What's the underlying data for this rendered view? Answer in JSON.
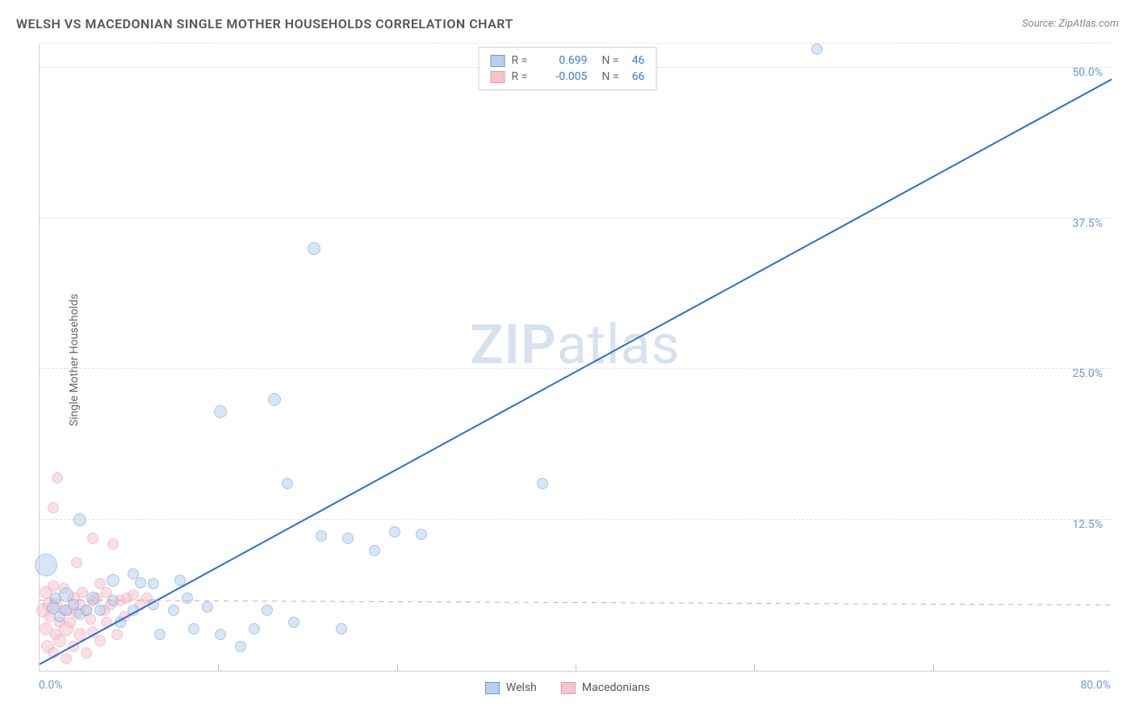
{
  "title": "WELSH VS MACEDONIAN SINGLE MOTHER HOUSEHOLDS CORRELATION CHART",
  "source": "Source: ZipAtlas.com",
  "y_axis_label": "Single Mother Households",
  "watermark_bold": "ZIP",
  "watermark_light": "atlas",
  "chart": {
    "type": "scatter",
    "background_color": "#ffffff",
    "grid_color": "#e0e0e0",
    "axis_color": "#d0d0d0",
    "tick_label_color": "#6b9bd1",
    "xlim": [
      0,
      80
    ],
    "ylim": [
      0,
      52
    ],
    "x_ticks": [
      0,
      80
    ],
    "x_tick_labels": [
      "0.0%",
      "80.0%"
    ],
    "x_minor_ticks": [
      13.3,
      26.7,
      40,
      53.3,
      66.7
    ],
    "y_gridlines": [
      12.5,
      25.0,
      37.5,
      50.0,
      52.0
    ],
    "y_tick_labels": [
      "12.5%",
      "25.0%",
      "37.5%",
      "50.0%"
    ],
    "title_fontsize": 16,
    "label_fontsize": 14
  },
  "series": [
    {
      "name": "Welsh",
      "color_fill": "#b8d0ec",
      "color_stroke": "#6b9bd1",
      "fill_opacity": 0.55,
      "trend": {
        "color": "#2b6cd4",
        "width": 2,
        "dashed": false,
        "x0": 0,
        "y0": 0.5,
        "x1": 80,
        "y1": 49.0
      },
      "stats": {
        "R": "0.699",
        "N": "46"
      },
      "points": [
        {
          "x": 0.5,
          "y": 8.8,
          "r": 14
        },
        {
          "x": 1.0,
          "y": 5.2,
          "r": 8
        },
        {
          "x": 1.2,
          "y": 6.0,
          "r": 7
        },
        {
          "x": 1.5,
          "y": 4.5,
          "r": 7
        },
        {
          "x": 2.0,
          "y": 6.3,
          "r": 9
        },
        {
          "x": 2.0,
          "y": 5.0,
          "r": 7
        },
        {
          "x": 2.5,
          "y": 5.5,
          "r": 7
        },
        {
          "x": 3.0,
          "y": 4.7,
          "r": 7
        },
        {
          "x": 3.0,
          "y": 12.5,
          "r": 8
        },
        {
          "x": 3.5,
          "y": 5.0,
          "r": 7
        },
        {
          "x": 4.0,
          "y": 6.0,
          "r": 8
        },
        {
          "x": 4.5,
          "y": 5.0,
          "r": 7
        },
        {
          "x": 5.5,
          "y": 7.5,
          "r": 8
        },
        {
          "x": 5.5,
          "y": 5.8,
          "r": 7
        },
        {
          "x": 6.0,
          "y": 4.0,
          "r": 7
        },
        {
          "x": 7.0,
          "y": 8.0,
          "r": 7
        },
        {
          "x": 7.0,
          "y": 5.0,
          "r": 7
        },
        {
          "x": 7.5,
          "y": 7.3,
          "r": 7
        },
        {
          "x": 8.5,
          "y": 7.2,
          "r": 7
        },
        {
          "x": 8.5,
          "y": 5.5,
          "r": 7
        },
        {
          "x": 9.0,
          "y": 3.0,
          "r": 7
        },
        {
          "x": 10.0,
          "y": 5.0,
          "r": 7
        },
        {
          "x": 10.5,
          "y": 7.5,
          "r": 7
        },
        {
          "x": 11.0,
          "y": 6.0,
          "r": 7
        },
        {
          "x": 11.5,
          "y": 3.5,
          "r": 7
        },
        {
          "x": 12.5,
          "y": 5.3,
          "r": 7
        },
        {
          "x": 13.5,
          "y": 3.0,
          "r": 7
        },
        {
          "x": 13.5,
          "y": 21.5,
          "r": 8
        },
        {
          "x": 15.0,
          "y": 2.0,
          "r": 7
        },
        {
          "x": 16.0,
          "y": 3.5,
          "r": 7
        },
        {
          "x": 17.0,
          "y": 5.0,
          "r": 7
        },
        {
          "x": 17.5,
          "y": 22.5,
          "r": 8
        },
        {
          "x": 18.5,
          "y": 15.5,
          "r": 7
        },
        {
          "x": 19.0,
          "y": 4.0,
          "r": 7
        },
        {
          "x": 20.5,
          "y": 35.0,
          "r": 8
        },
        {
          "x": 21.0,
          "y": 11.2,
          "r": 7
        },
        {
          "x": 22.5,
          "y": 3.5,
          "r": 7
        },
        {
          "x": 23.0,
          "y": 11.0,
          "r": 7
        },
        {
          "x": 25.0,
          "y": 10.0,
          "r": 7
        },
        {
          "x": 26.5,
          "y": 11.5,
          "r": 7
        },
        {
          "x": 28.5,
          "y": 11.3,
          "r": 7
        },
        {
          "x": 37.5,
          "y": 15.5,
          "r": 7
        },
        {
          "x": 58.0,
          "y": 51.5,
          "r": 7
        }
      ]
    },
    {
      "name": "Macedonians",
      "color_fill": "#f5c4cd",
      "color_stroke": "#e89bae",
      "fill_opacity": 0.55,
      "trend": {
        "color": "#e89bae",
        "width": 1,
        "dashed": true,
        "x0": 0,
        "y0": 5.8,
        "x1": 80,
        "y1": 5.4
      },
      "stats": {
        "R": "-0.005",
        "N": "66"
      },
      "points": [
        {
          "x": 0.3,
          "y": 5.0,
          "r": 9
        },
        {
          "x": 0.5,
          "y": 3.5,
          "r": 8
        },
        {
          "x": 0.5,
          "y": 6.5,
          "r": 8
        },
        {
          "x": 0.6,
          "y": 2.0,
          "r": 8
        },
        {
          "x": 0.8,
          "y": 4.5,
          "r": 7
        },
        {
          "x": 0.8,
          "y": 5.5,
          "r": 9
        },
        {
          "x": 1.0,
          "y": 1.5,
          "r": 7
        },
        {
          "x": 1.0,
          "y": 7.0,
          "r": 7
        },
        {
          "x": 1.0,
          "y": 13.5,
          "r": 7
        },
        {
          "x": 1.2,
          "y": 3.0,
          "r": 7
        },
        {
          "x": 1.2,
          "y": 5.5,
          "r": 8
        },
        {
          "x": 1.3,
          "y": 16.0,
          "r": 7
        },
        {
          "x": 1.5,
          "y": 4.0,
          "r": 7
        },
        {
          "x": 1.5,
          "y": 2.5,
          "r": 8
        },
        {
          "x": 1.8,
          "y": 5.0,
          "r": 7
        },
        {
          "x": 1.8,
          "y": 6.8,
          "r": 7
        },
        {
          "x": 2.0,
          "y": 3.5,
          "r": 9
        },
        {
          "x": 2.0,
          "y": 1.0,
          "r": 7
        },
        {
          "x": 2.2,
          "y": 5.0,
          "r": 7
        },
        {
          "x": 2.3,
          "y": 4.0,
          "r": 7
        },
        {
          "x": 2.5,
          "y": 6.0,
          "r": 8
        },
        {
          "x": 2.5,
          "y": 2.0,
          "r": 7
        },
        {
          "x": 2.8,
          "y": 4.8,
          "r": 7
        },
        {
          "x": 2.8,
          "y": 9.0,
          "r": 7
        },
        {
          "x": 3.0,
          "y": 5.5,
          "r": 7
        },
        {
          "x": 3.0,
          "y": 3.0,
          "r": 8
        },
        {
          "x": 3.2,
          "y": 6.5,
          "r": 7
        },
        {
          "x": 3.5,
          "y": 1.5,
          "r": 7
        },
        {
          "x": 3.5,
          "y": 5.0,
          "r": 7
        },
        {
          "x": 3.8,
          "y": 4.3,
          "r": 7
        },
        {
          "x": 4.0,
          "y": 5.8,
          "r": 7
        },
        {
          "x": 4.0,
          "y": 3.2,
          "r": 7
        },
        {
          "x": 4.0,
          "y": 11.0,
          "r": 7
        },
        {
          "x": 4.3,
          "y": 6.0,
          "r": 7
        },
        {
          "x": 4.5,
          "y": 7.2,
          "r": 7
        },
        {
          "x": 4.5,
          "y": 2.5,
          "r": 7
        },
        {
          "x": 4.8,
          "y": 5.0,
          "r": 7
        },
        {
          "x": 5.0,
          "y": 4.0,
          "r": 7
        },
        {
          "x": 5.0,
          "y": 6.5,
          "r": 7
        },
        {
          "x": 5.3,
          "y": 5.5,
          "r": 7
        },
        {
          "x": 5.5,
          "y": 10.5,
          "r": 7
        },
        {
          "x": 5.8,
          "y": 3.0,
          "r": 7
        },
        {
          "x": 6.0,
          "y": 5.8,
          "r": 7
        },
        {
          "x": 6.3,
          "y": 4.5,
          "r": 7
        },
        {
          "x": 6.5,
          "y": 6.0,
          "r": 7
        },
        {
          "x": 7.0,
          "y": 6.3,
          "r": 7
        },
        {
          "x": 7.5,
          "y": 5.5,
          "r": 7
        },
        {
          "x": 8.0,
          "y": 6.0,
          "r": 7
        }
      ]
    }
  ],
  "legend_bottom": [
    {
      "label": "Welsh",
      "fill": "#b8d0ec",
      "stroke": "#6b9bd1"
    },
    {
      "label": "Macedonians",
      "fill": "#f5c4cd",
      "stroke": "#e89bae"
    }
  ]
}
